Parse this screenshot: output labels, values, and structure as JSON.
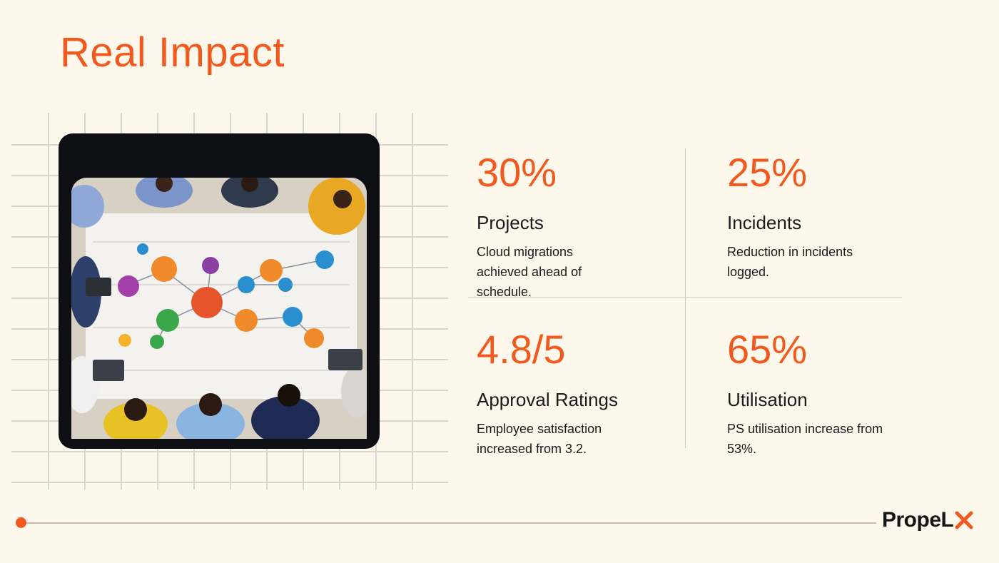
{
  "slide": {
    "title": "Real Impact"
  },
  "stats": [
    {
      "value": "30%",
      "label": "Projects",
      "description": "Cloud migrations achieved ahead of schedule."
    },
    {
      "value": "25%",
      "label": "Incidents",
      "description": "Reduction in incidents logged."
    },
    {
      "value": "4.8/5",
      "label": "Approval Ratings",
      "description": "Employee satisfaction increased from 3.2."
    },
    {
      "value": "65%",
      "label": "Utilisation",
      "description": "PS utilisation increase from 53%."
    }
  ],
  "brand": {
    "logo_text": "PropelX",
    "logo_main": "PropeL",
    "accent": "#f05a1e"
  },
  "image": {
    "subject": "team-mind-map-meeting-photo"
  }
}
